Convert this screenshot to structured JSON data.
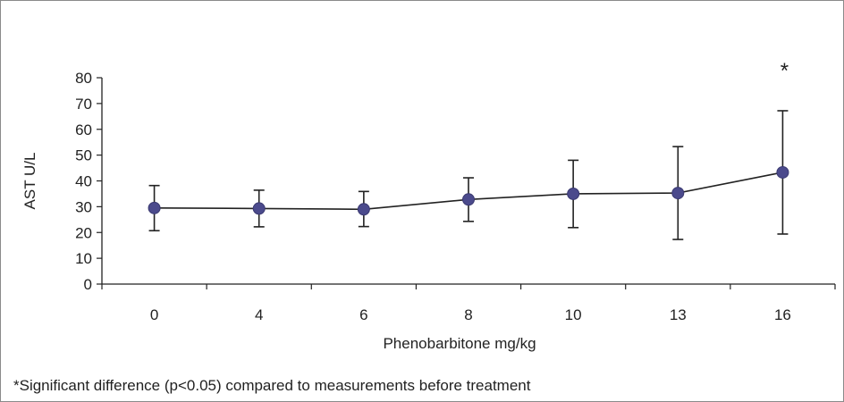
{
  "chart_data": {
    "type": "line",
    "title": "",
    "xlabel": "Phenobarbitone mg/kg",
    "ylabel": "AST U/L",
    "categories": [
      "0",
      "4",
      "6",
      "8",
      "10",
      "13",
      "16"
    ],
    "series": [
      {
        "values": [
          29.5,
          29.3,
          29.0,
          32.8,
          35.0,
          35.3,
          43.3
        ],
        "error_high": [
          38.2,
          36.4,
          35.9,
          41.2,
          48.0,
          53.3,
          67.2
        ],
        "error_low": [
          20.7,
          22.2,
          22.3,
          24.3,
          21.9,
          17.3,
          19.4
        ],
        "color": "#4b4a8c"
      }
    ],
    "ylim": [
      0,
      80
    ],
    "yticks": [
      0,
      10,
      20,
      30,
      40,
      50,
      60,
      70,
      80
    ],
    "grid": false,
    "legend": "none",
    "annotations": [
      {
        "category": "16",
        "text": "*"
      }
    ]
  },
  "footnote": "*Significant difference (p<0.05) compared to measurements before treatment"
}
